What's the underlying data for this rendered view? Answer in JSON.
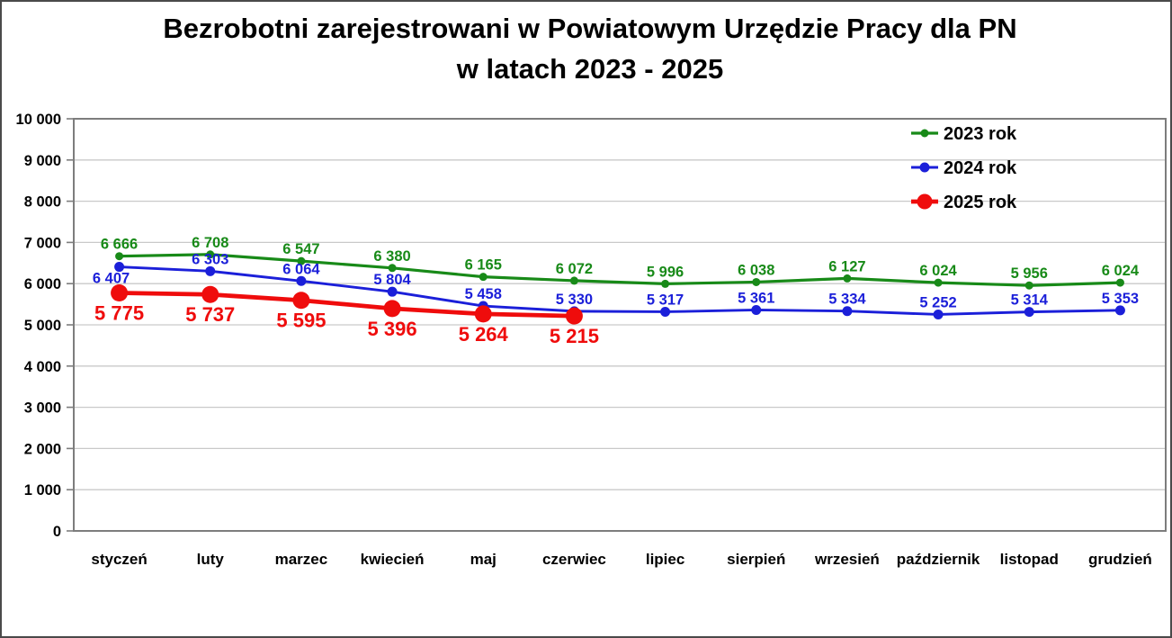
{
  "chart_data": {
    "type": "line",
    "title": "Bezrobotni zarejestrowani w Powiatowym Urzędzie Pracy dla PN",
    "subtitle": "w latach 2023 - 2025",
    "categories": [
      "styczeń",
      "luty",
      "marzec",
      "kwiecień",
      "maj",
      "czerwiec",
      "lipiec",
      "sierpień",
      "wrzesień",
      "październik",
      "listopad",
      "grudzień"
    ],
    "series": [
      {
        "name": "2023 rok",
        "color": "#188a18",
        "values": [
          6666,
          6708,
          6547,
          6380,
          6165,
          6072,
          5996,
          6038,
          6127,
          6024,
          5956,
          6024
        ],
        "labels": [
          "6 666",
          "6 708",
          "6 547",
          "6 380",
          "6 165",
          "6 072",
          "5 996",
          "6 038",
          "6 127",
          "6 024",
          "5 956",
          "6 024"
        ]
      },
      {
        "name": "2024 rok",
        "color": "#1b1fd9",
        "values": [
          6407,
          6303,
          6064,
          5804,
          5458,
          5330,
          5317,
          5361,
          5334,
          5252,
          5314,
          5353
        ],
        "labels": [
          "6 407",
          "6 303",
          "6 064",
          "5 804",
          "5 458",
          "5 330",
          "5 317",
          "5 361",
          "5 334",
          "5 252",
          "5 314",
          "5 353"
        ]
      },
      {
        "name": "2025 rok",
        "color": "#ef0c0c",
        "values": [
          5775,
          5737,
          5595,
          5396,
          5264,
          5215
        ],
        "labels": [
          "5 775",
          "5 737",
          "5 595",
          "5 396",
          "5 264",
          "5 215"
        ]
      }
    ],
    "y_axis": {
      "min": 0,
      "max": 10000,
      "step": 1000,
      "tick_labels": [
        "0",
        "1 000",
        "2 000",
        "3 000",
        "4 000",
        "5 000",
        "6 000",
        "7 000",
        "8 000",
        "9 000",
        "10 000"
      ]
    },
    "legend_position": "top-right",
    "grid": true,
    "colors": {
      "grid": "#c9c9c9",
      "axis": "#7d7d7d",
      "text": "#000000"
    }
  }
}
